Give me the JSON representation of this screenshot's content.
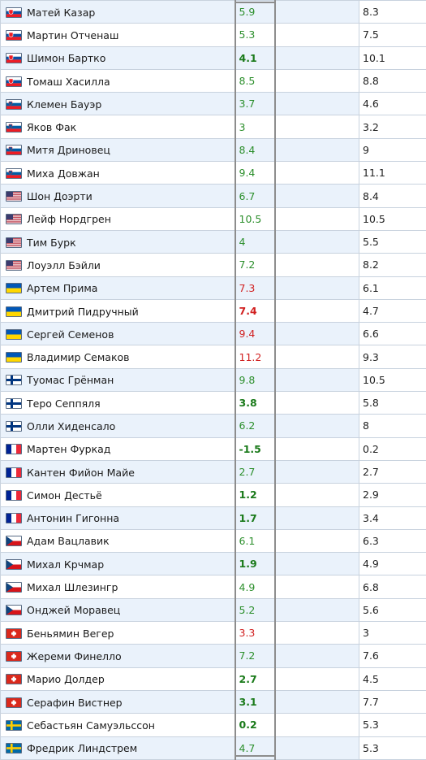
{
  "rows": [
    {
      "name": "Матей Казар",
      "flag": "slovakia",
      "value": "5.9",
      "style": "green",
      "value2": "8.3"
    },
    {
      "name": "Мартин Отченаш",
      "flag": "slovakia",
      "value": "5.3",
      "style": "green",
      "value2": "7.5"
    },
    {
      "name": "Шимон Бартко",
      "flag": "slovakia",
      "value": "4.1",
      "style": "bold",
      "value2": "10.1"
    },
    {
      "name": "Томаш Хасилла",
      "flag": "slovakia",
      "value": "8.5",
      "style": "green",
      "value2": "8.8"
    },
    {
      "name": "Клемен Бауэр",
      "flag": "slovenia",
      "value": "3.7",
      "style": "green",
      "value2": "4.6"
    },
    {
      "name": "Яков Фак",
      "flag": "slovenia",
      "value": "3",
      "style": "green",
      "value2": "3.2"
    },
    {
      "name": "Митя Дриновец",
      "flag": "slovenia",
      "value": "8.4",
      "style": "green",
      "value2": "9"
    },
    {
      "name": "Миха Довжан",
      "flag": "slovenia",
      "value": "9.4",
      "style": "green",
      "value2": "11.1"
    },
    {
      "name": "Шон Доэрти",
      "flag": "usa",
      "value": "6.7",
      "style": "green",
      "value2": "8.4"
    },
    {
      "name": "Лейф Нордгрен",
      "flag": "usa",
      "value": "10.5",
      "style": "green",
      "value2": "10.5"
    },
    {
      "name": "Тим Бурк",
      "flag": "usa",
      "value": "4",
      "style": "green",
      "value2": "5.5"
    },
    {
      "name": "Лоуэлл Бэйли",
      "flag": "usa",
      "value": "7.2",
      "style": "green",
      "value2": "8.2"
    },
    {
      "name": "Артем Прима",
      "flag": "ukraine",
      "value": "7.3",
      "style": "red",
      "value2": "6.1"
    },
    {
      "name": "Дмитрий Пидручный",
      "flag": "ukraine",
      "value": "7.4",
      "style": "redbold",
      "value2": "4.7"
    },
    {
      "name": "Сергей Семенов",
      "flag": "ukraine",
      "value": "9.4",
      "style": "red",
      "value2": "6.6"
    },
    {
      "name": "Владимир Семаков",
      "flag": "ukraine",
      "value": "11.2",
      "style": "red",
      "value2": "9.3"
    },
    {
      "name": "Туомас Грёнман",
      "flag": "finland",
      "value": "9.8",
      "style": "green",
      "value2": "10.5"
    },
    {
      "name": "Теро Сеппяля",
      "flag": "finland",
      "value": "3.8",
      "style": "bold",
      "value2": "5.8"
    },
    {
      "name": "Олли Хиденсало",
      "flag": "finland",
      "value": "6.2",
      "style": "green",
      "value2": "8"
    },
    {
      "name": "Мартен Фуркад",
      "flag": "france",
      "value": "-1.5",
      "style": "bold",
      "value2": "0.2"
    },
    {
      "name": "Кантен Фийон Майе",
      "flag": "france",
      "value": "2.7",
      "style": "green",
      "value2": "2.7"
    },
    {
      "name": "Симон Дестьё",
      "flag": "france",
      "value": "1.2",
      "style": "bold",
      "value2": "2.9"
    },
    {
      "name": "Антонин Гигонна",
      "flag": "france",
      "value": "1.7",
      "style": "bold",
      "value2": "3.4"
    },
    {
      "name": "Адам Вацлавик",
      "flag": "czech",
      "value": "6.1",
      "style": "green",
      "value2": "6.3"
    },
    {
      "name": "Михал Крчмар",
      "flag": "czech",
      "value": "1.9",
      "style": "bold",
      "value2": "4.9"
    },
    {
      "name": "Михал Шлезингр",
      "flag": "czech",
      "value": "4.9",
      "style": "green",
      "value2": "6.8"
    },
    {
      "name": "Онджей Моравец",
      "flag": "czech",
      "value": "5.2",
      "style": "green",
      "value2": "5.6"
    },
    {
      "name": "Беньямин Вегер",
      "flag": "switzerland",
      "value": "3.3",
      "style": "red",
      "value2": "3"
    },
    {
      "name": "Жереми Финелло",
      "flag": "switzerland",
      "value": "7.2",
      "style": "green",
      "value2": "7.6"
    },
    {
      "name": "Марио Долдер",
      "flag": "switzerland",
      "value": "2.7",
      "style": "bold",
      "value2": "4.5"
    },
    {
      "name": "Серафин Вистнер",
      "flag": "switzerland",
      "value": "3.1",
      "style": "bold",
      "value2": "7.7"
    },
    {
      "name": "Себастьян Самуэльссон",
      "flag": "sweden",
      "value": "0.2",
      "style": "bold",
      "value2": "5.3"
    },
    {
      "name": "Фредрик Линдстрем",
      "flag": "sweden",
      "value": "4.7",
      "style": "green",
      "value2": "5.3"
    }
  ],
  "colors": {
    "green": "#2c8f2c",
    "red": "#d12020",
    "alt_row": "#eaf2fb",
    "frame": "#8d8d8d"
  }
}
